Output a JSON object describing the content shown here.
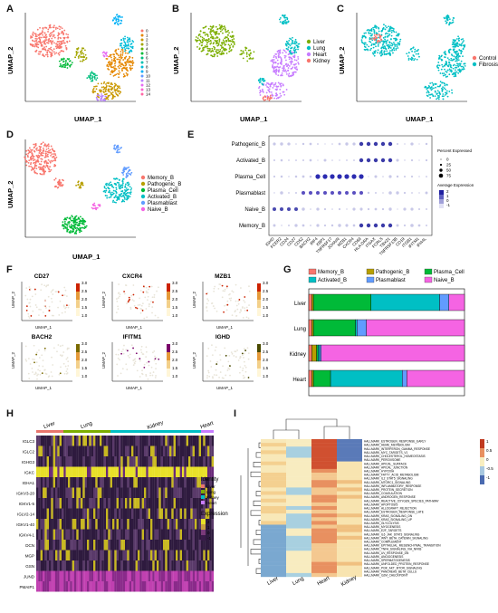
{
  "panels": {
    "A": {
      "letter": "A",
      "xlabel": "UMAP_1",
      "ylabel": "UMAP_2",
      "legend": [
        "0",
        "1",
        "2",
        "3",
        "4",
        "5",
        "6",
        "7",
        "8",
        "9",
        "10",
        "11",
        "12",
        "13",
        "14"
      ],
      "colors": [
        "#f8766d",
        "#e58700",
        "#c99800",
        "#a3a500",
        "#6bb100",
        "#00ba38",
        "#00bf7d",
        "#00c0af",
        "#00bcd8",
        "#00b0f6",
        "#619cff",
        "#b983ff",
        "#e76bf3",
        "#fd61d1",
        "#ff67a4"
      ]
    },
    "B": {
      "letter": "B",
      "xlabel": "UMAP_1",
      "ylabel": "UMAP_2",
      "legend": [
        "Liver",
        "Lung",
        "Heart",
        "Kidney"
      ],
      "colors": [
        "#7cae00",
        "#00bfc4",
        "#c77cff",
        "#f8766d"
      ],
      "labels": [
        "Liver",
        "Lung",
        "Heart",
        "Kidney"
      ]
    },
    "C": {
      "letter": "C",
      "xlabel": "UMAP_1",
      "ylabel": "UMAP_2",
      "legend": [
        "Control",
        "Fibrosis"
      ],
      "colors": [
        "#f8766d",
        "#00bfc4"
      ],
      "labels": [
        "Control"
      ]
    },
    "D": {
      "letter": "D",
      "xlabel": "UMAP_1",
      "ylabel": "UMAP_2",
      "legend": [
        "Memory_B",
        "Pathogenic_B",
        "Plasma_Cell",
        "Activated_B",
        "Plasmablast",
        "Naive_B"
      ],
      "colors": [
        "#f8766d",
        "#b79f00",
        "#00ba38",
        "#00bfc4",
        "#619cff",
        "#f564e3"
      ],
      "labels": [
        "Memory_B",
        "Plasmablast",
        "Plasma_Cell",
        "Naive_B",
        "Activated_B"
      ]
    },
    "E": {
      "letter": "E",
      "rows": [
        "Pathogenic_B",
        "Activated_B",
        "Plasma_Cell",
        "Plasmablast",
        "Naive_B",
        "Memory_B"
      ],
      "genes": [
        "IGHD",
        "FCER2",
        "CD24",
        "CD27",
        "CD52",
        "BACH2",
        "IRF4",
        "XBP1",
        "TNFRSF17",
        "JCHAIN",
        "MZB1",
        "CXCR4",
        "CD69",
        "HLA-DRA",
        "ITGAX",
        "FCRL5",
        "TBX21",
        "TNFRSF13B",
        "CD19",
        "ITGB1",
        "IFITM1",
        "IFI44L"
      ],
      "legend_title_size": "Percent Expressed",
      "size_ticks": [
        "0",
        "25",
        "50",
        "75"
      ],
      "legend_title_color": "Average Expression",
      "color_ticks": [
        "2",
        "1",
        "0",
        "-1"
      ]
    },
    "F": {
      "letter": "F",
      "features": [
        {
          "name": "CD27",
          "max": "3.0",
          "mid1": "2.5",
          "mid2": "2.0",
          "mid3": "1.5",
          "min": "1.0",
          "hue": "#cc2200"
        },
        {
          "name": "CXCR4",
          "max": "3.0",
          "mid1": "2.5",
          "mid2": "2.0",
          "mid3": "1.5",
          "min": "1.0",
          "hue": "#cc2200"
        },
        {
          "name": "MZB1",
          "max": "3.0",
          "mid1": "2.5",
          "mid2": "2.0",
          "mid3": "1.5",
          "min": "1.0",
          "hue": "#cc2200"
        },
        {
          "name": "BACH2",
          "max": "3.0",
          "mid1": "2.5",
          "mid2": "2.0",
          "mid3": "1.5",
          "min": "1.0",
          "hue": "#7a6a00"
        },
        {
          "name": "IFITM1",
          "max": "3.0",
          "mid1": "2.5",
          "mid2": "2.0",
          "mid3": "1.5",
          "min": "1.0",
          "hue": "#7a006a"
        },
        {
          "name": "IGHD",
          "max": "3.0",
          "mid1": "2.5",
          "mid2": "2.0",
          "mid3": "1.5",
          "min": "1.0",
          "hue": "#4a4a00"
        }
      ],
      "xlabel": "UMAP_1",
      "ylabel": "UMAP_2"
    },
    "G": {
      "letter": "G",
      "legend": [
        "Memory_B",
        "Pathogenic_B",
        "Plasma_Cell",
        "Activated_B",
        "Plasmablast",
        "Naive_B"
      ],
      "colors": [
        "#f8766d",
        "#b79f00",
        "#00ba38",
        "#00bfc4",
        "#619cff",
        "#f564e3"
      ],
      "rows": [
        "Liver",
        "Lung",
        "Kidney",
        "Heart"
      ],
      "chart_data": {
        "type": "bar",
        "categories": [
          "Liver",
          "Lung",
          "Kidney",
          "Heart"
        ],
        "series": [
          {
            "name": "Memory_B",
            "values": [
              0.02,
              0.02,
              0.02,
              0.02
            ]
          },
          {
            "name": "Pathogenic_B",
            "values": [
              0.01,
              0.01,
              0.03,
              0.01
            ]
          },
          {
            "name": "Plasma_Cell",
            "values": [
              0.37,
              0.27,
              0.01,
              0.11
            ]
          },
          {
            "name": "Activated_B",
            "values": [
              0.44,
              0.01,
              0.01,
              0.46
            ]
          },
          {
            "name": "Plasmablast",
            "values": [
              0.06,
              0.06,
              0.01,
              0.03
            ]
          },
          {
            "name": "Naive_B",
            "values": [
              0.1,
              0.63,
              0.92,
              0.37
            ]
          }
        ]
      }
    },
    "H": {
      "letter": "H",
      "groups": [
        "Liver",
        "Lung",
        "Kidney",
        "Heart"
      ],
      "genes": [
        "IGLC3",
        "IGLC2",
        "IGHG3",
        "IGKC",
        "IGHA1",
        "IGKV3-20",
        "IGKV1-5",
        "IGLV2-14",
        "IGKV1-40",
        "IGKV4-1",
        "DCN",
        "MGP",
        "GSN",
        "JUND",
        "PMAIP1"
      ],
      "identity_title": "Identity",
      "identity_items": [
        "Liver",
        "Lung",
        "Kidney",
        "Heart"
      ],
      "expression_title": "Expression",
      "expression_ticks": [
        "2",
        "1",
        "0",
        "-1"
      ]
    },
    "I": {
      "letter": "I",
      "columns": [
        "Liver",
        "Lung",
        "Heart",
        "Kidney"
      ],
      "rows": [
        "HALLMARK_ESTROGEN_RESPONSE_EARLY",
        "HALLMARK_HEME_METABOLISM",
        "HALLMARK_INTERFERON_GAMMA_RESPONSE",
        "HALLMARK_MYC_TARGETS_V1",
        "HALLMARK_CHOLESTEROL_HOMEOSTASIS",
        "HALLMARK_PEROXISOME",
        "HALLMARK_APICAL_SURFACE",
        "HALLMARK_APICAL_JUNCTION",
        "HALLMARK_HYPOXIA",
        "HALLMARK_FATTY_ACID_METABOLISM",
        "HALLMARK_IL2_STAT5_SIGNALING",
        "HALLMARK_MTORC1_SIGNALING",
        "HALLMARK_INFLAMMATORY_RESPONSE",
        "HALLMARK_PROTEIN_SECRETION",
        "HALLMARK_COAGULATION",
        "HALLMARK_ANDROGEN_RESPONSE",
        "HALLMARK_REACTIVE_OXYGEN_SPECIES_PATHWAY",
        "HALLMARK_APOPTOSIS",
        "HALLMARK_ALLOGRAFT_REJECTION",
        "HALLMARK_ESTROGEN_RESPONSE_LATE",
        "HALLMARK_KRAS_SIGNALING_DN",
        "HALLMARK_KRAS_SIGNALING_UP",
        "HALLMARK_GLYCOLYSIS",
        "HALLMARK_MYOGENESIS",
        "HALLMARK_E2F_TARGETS",
        "HALLMARK_IL6_JAK_STAT3_SIGNALING",
        "HALLMARK_WNT_BETA_CATENIN_SIGNALING",
        "HALLMARK_COMPLEMENT",
        "HALLMARK_EPITHELIAL_MESENCHYMAL_TRANSITION",
        "HALLMARK_TNFA_SIGNALING_VIA_NFKB",
        "HALLMARK_UV_RESPONSE_DN",
        "HALLMARK_ANGIOGENESIS",
        "HALLMARK_SPERMATOGENESIS",
        "HALLMARK_UNFOLDED_PROTEIN_RESPONSE",
        "HALLMARK_PI3K_AKT_MTOR_SIGNALING",
        "HALLMARK_PANCREAS_BETA_CELLS",
        "HALLMARK_G2M_CHECKPOINT"
      ],
      "scale_ticks": [
        "1",
        "0.5",
        "0",
        "-0.5",
        "-1"
      ]
    }
  }
}
